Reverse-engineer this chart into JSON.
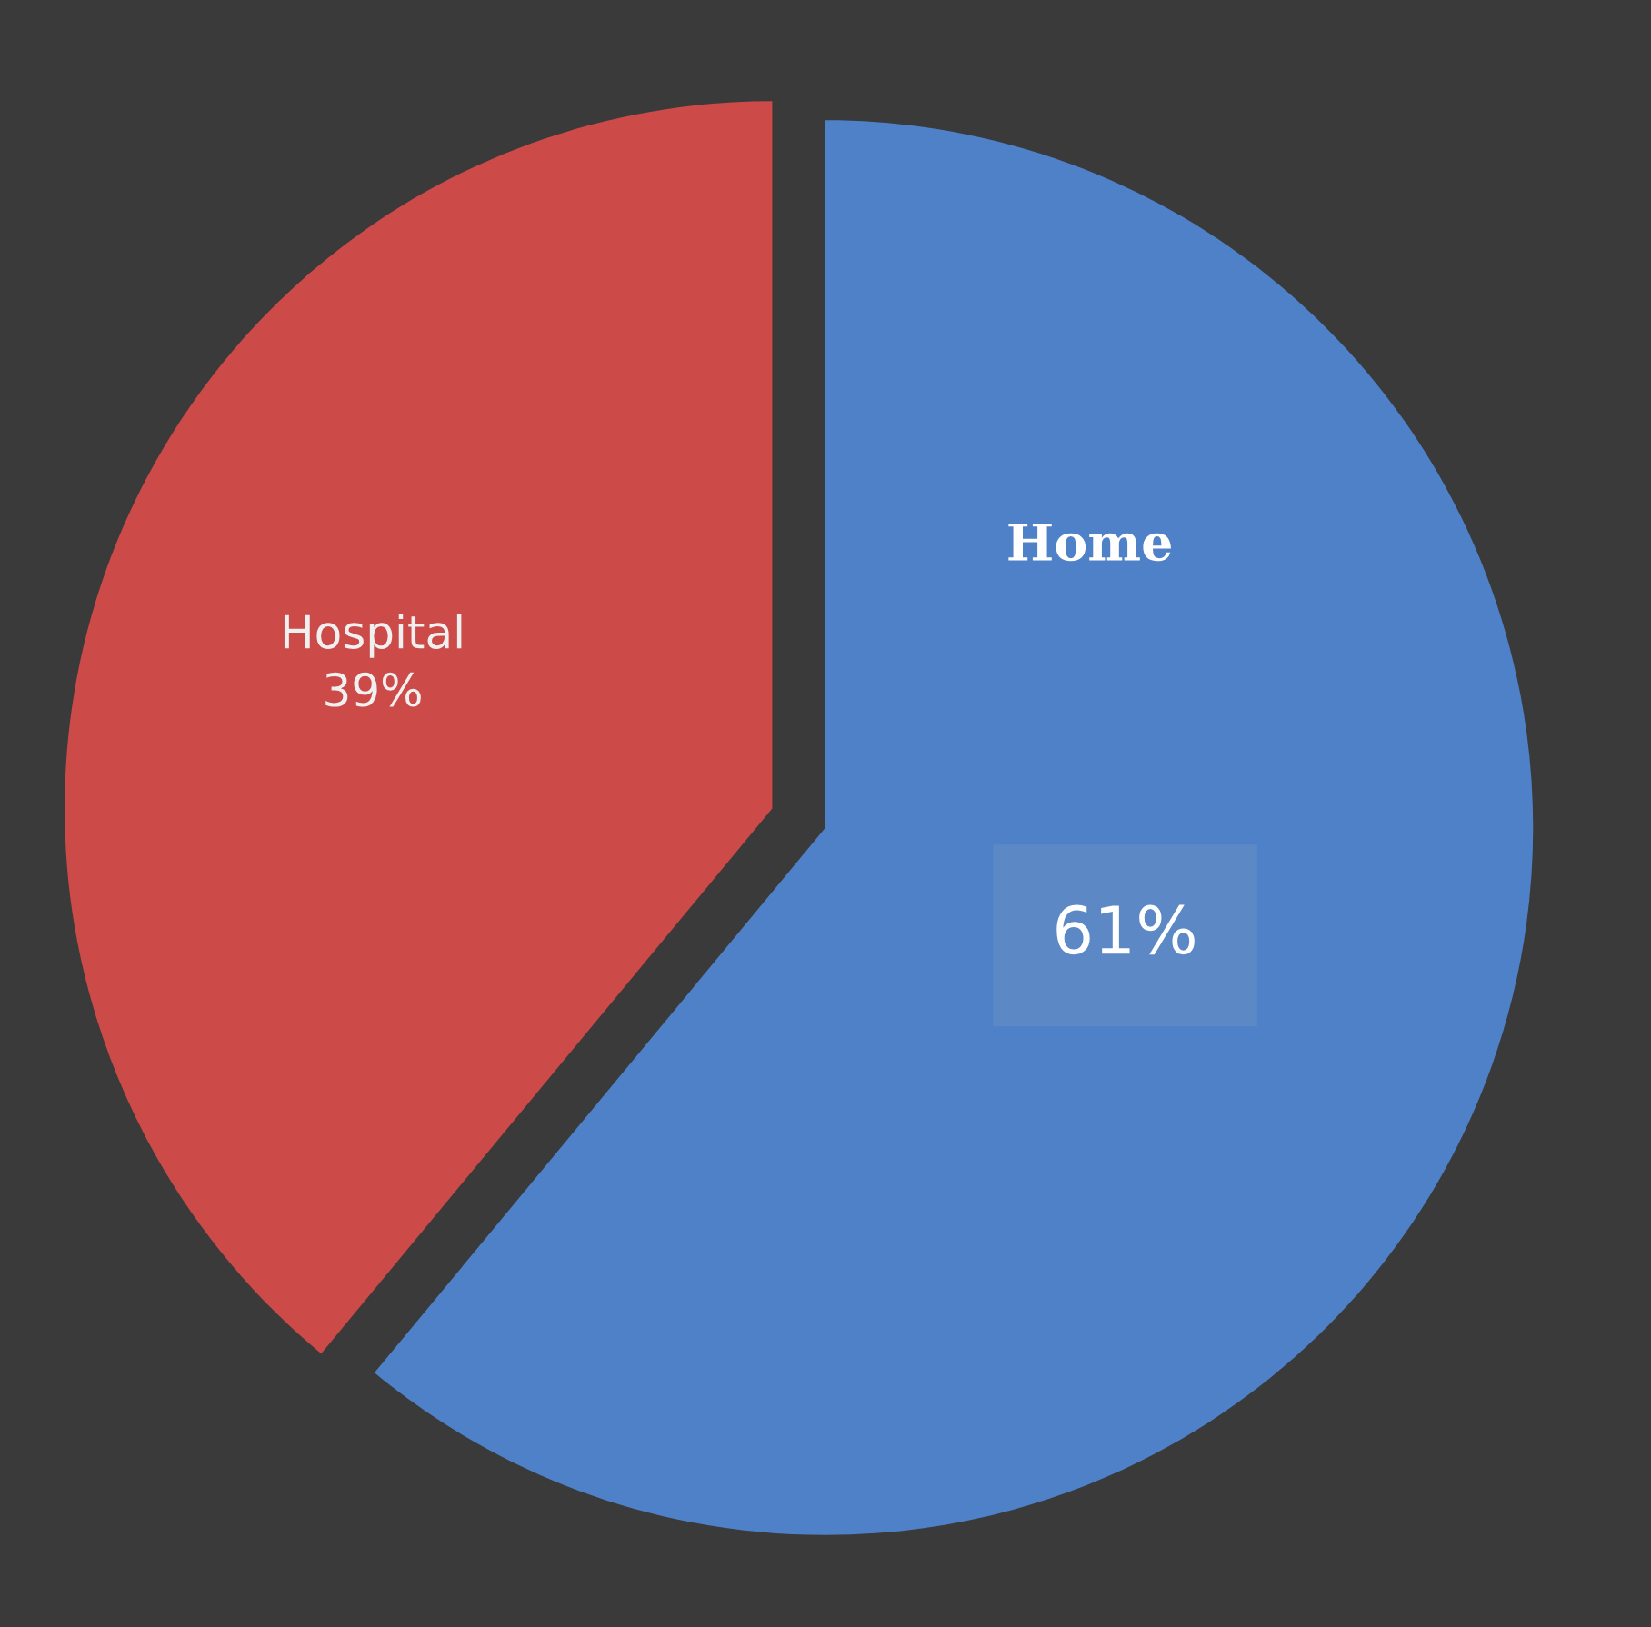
{
  "chart_data": {
    "type": "pie",
    "categories": [
      "Home",
      "Hospital"
    ],
    "values": [
      61,
      39
    ],
    "colors": [
      "#4f81c9",
      "#cc4a47"
    ],
    "value_labels": [
      "61%",
      "39%"
    ],
    "legend": false
  }
}
